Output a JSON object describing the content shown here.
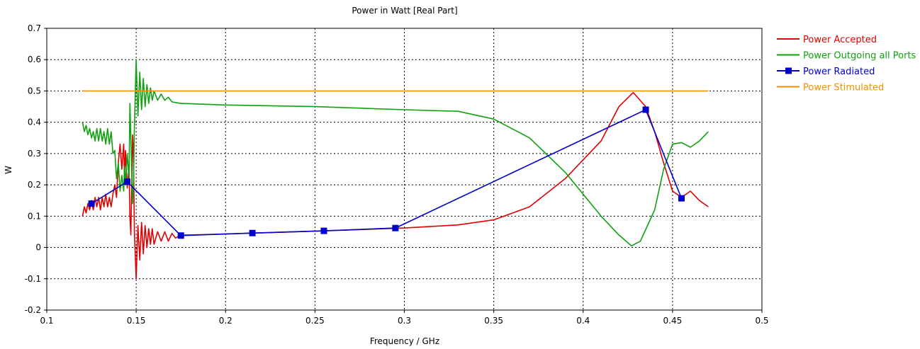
{
  "chart_data": {
    "type": "line",
    "title": "Power in Watt [Real Part]",
    "xlabel": "Frequency / GHz",
    "ylabel": "W",
    "xlim": [
      0.1,
      0.5
    ],
    "ylim": [
      -0.2,
      0.7
    ],
    "xticks": [
      "0.1",
      "0.15",
      "0.2",
      "0.25",
      "0.3",
      "0.35",
      "0.4",
      "0.45",
      "0.5"
    ],
    "yticks": [
      "-0.2",
      "-0.1",
      "0",
      "0.1",
      "0.2",
      "0.3",
      "0.4",
      "0.5",
      "0.6",
      "0.7"
    ],
    "grid": true,
    "legend_position": "right",
    "series": [
      {
        "name": "Power Accepted",
        "color": "#e00000",
        "marker": "none",
        "points": [
          [
            0.12,
            0.1
          ],
          [
            0.121,
            0.13
          ],
          [
            0.122,
            0.11
          ],
          [
            0.123,
            0.14
          ],
          [
            0.124,
            0.12
          ],
          [
            0.125,
            0.15
          ],
          [
            0.126,
            0.12
          ],
          [
            0.127,
            0.16
          ],
          [
            0.128,
            0.13
          ],
          [
            0.129,
            0.16
          ],
          [
            0.13,
            0.12
          ],
          [
            0.131,
            0.16
          ],
          [
            0.132,
            0.13
          ],
          [
            0.133,
            0.17
          ],
          [
            0.134,
            0.13
          ],
          [
            0.135,
            0.16
          ],
          [
            0.136,
            0.13
          ],
          [
            0.137,
            0.17
          ],
          [
            0.138,
            0.2
          ],
          [
            0.139,
            0.16
          ],
          [
            0.14,
            0.27
          ],
          [
            0.141,
            0.33
          ],
          [
            0.142,
            0.25
          ],
          [
            0.143,
            0.33
          ],
          [
            0.1435,
            0.22
          ],
          [
            0.144,
            0.31
          ],
          [
            0.145,
            0.19
          ],
          [
            0.146,
            0.26
          ],
          [
            0.1465,
            0.1
          ],
          [
            0.147,
            0.04
          ],
          [
            0.148,
            0.36
          ],
          [
            0.1485,
            0.3
          ],
          [
            0.149,
            0.05
          ],
          [
            0.15,
            -0.1
          ],
          [
            0.151,
            0.07
          ],
          [
            0.152,
            -0.04
          ],
          [
            0.153,
            0.08
          ],
          [
            0.154,
            -0.02
          ],
          [
            0.155,
            0.07
          ],
          [
            0.156,
            0.0
          ],
          [
            0.157,
            0.06
          ],
          [
            0.158,
            0.01
          ],
          [
            0.159,
            0.06
          ],
          [
            0.16,
            0.01
          ],
          [
            0.162,
            0.05
          ],
          [
            0.164,
            0.02
          ],
          [
            0.166,
            0.05
          ],
          [
            0.168,
            0.02
          ],
          [
            0.17,
            0.045
          ],
          [
            0.172,
            0.03
          ],
          [
            0.175,
            0.04
          ],
          [
            0.18,
            0.04
          ],
          [
            0.2,
            0.043
          ],
          [
            0.25,
            0.052
          ],
          [
            0.3,
            0.062
          ],
          [
            0.33,
            0.072
          ],
          [
            0.35,
            0.088
          ],
          [
            0.37,
            0.13
          ],
          [
            0.39,
            0.22
          ],
          [
            0.41,
            0.34
          ],
          [
            0.42,
            0.45
          ],
          [
            0.428,
            0.495
          ],
          [
            0.435,
            0.45
          ],
          [
            0.44,
            0.37
          ],
          [
            0.445,
            0.27
          ],
          [
            0.45,
            0.18
          ],
          [
            0.455,
            0.16
          ],
          [
            0.46,
            0.18
          ],
          [
            0.465,
            0.15
          ],
          [
            0.47,
            0.13
          ]
        ]
      },
      {
        "name": "Power Outgoing all Ports",
        "color": "#10a010",
        "marker": "none",
        "points": [
          [
            0.12,
            0.4
          ],
          [
            0.121,
            0.37
          ],
          [
            0.122,
            0.39
          ],
          [
            0.123,
            0.36
          ],
          [
            0.124,
            0.38
          ],
          [
            0.125,
            0.35
          ],
          [
            0.126,
            0.37
          ],
          [
            0.127,
            0.34
          ],
          [
            0.128,
            0.38
          ],
          [
            0.129,
            0.34
          ],
          [
            0.13,
            0.38
          ],
          [
            0.131,
            0.34
          ],
          [
            0.132,
            0.37
          ],
          [
            0.133,
            0.33
          ],
          [
            0.134,
            0.38
          ],
          [
            0.135,
            0.33
          ],
          [
            0.136,
            0.37
          ],
          [
            0.137,
            0.3
          ],
          [
            0.138,
            0.31
          ],
          [
            0.139,
            0.22
          ],
          [
            0.14,
            0.27
          ],
          [
            0.141,
            0.18
          ],
          [
            0.142,
            0.23
          ],
          [
            0.143,
            0.18
          ],
          [
            0.1435,
            0.26
          ],
          [
            0.144,
            0.2
          ],
          [
            0.145,
            0.3
          ],
          [
            0.146,
            0.22
          ],
          [
            0.1465,
            0.46
          ],
          [
            0.147,
            0.35
          ],
          [
            0.148,
            0.14
          ],
          [
            0.1485,
            0.2
          ],
          [
            0.149,
            0.38
          ],
          [
            0.15,
            0.6
          ],
          [
            0.151,
            0.42
          ],
          [
            0.152,
            0.56
          ],
          [
            0.153,
            0.44
          ],
          [
            0.154,
            0.54
          ],
          [
            0.155,
            0.45
          ],
          [
            0.156,
            0.52
          ],
          [
            0.157,
            0.46
          ],
          [
            0.158,
            0.51
          ],
          [
            0.159,
            0.47
          ],
          [
            0.16,
            0.5
          ],
          [
            0.162,
            0.47
          ],
          [
            0.164,
            0.49
          ],
          [
            0.166,
            0.47
          ],
          [
            0.168,
            0.48
          ],
          [
            0.17,
            0.465
          ],
          [
            0.175,
            0.46
          ],
          [
            0.2,
            0.455
          ],
          [
            0.25,
            0.45
          ],
          [
            0.3,
            0.44
          ],
          [
            0.33,
            0.435
          ],
          [
            0.35,
            0.41
          ],
          [
            0.37,
            0.35
          ],
          [
            0.39,
            0.24
          ],
          [
            0.41,
            0.1
          ],
          [
            0.42,
            0.04
          ],
          [
            0.427,
            0.005
          ],
          [
            0.432,
            0.02
          ],
          [
            0.44,
            0.12
          ],
          [
            0.445,
            0.25
          ],
          [
            0.45,
            0.33
          ],
          [
            0.455,
            0.335
          ],
          [
            0.46,
            0.32
          ],
          [
            0.465,
            0.34
          ],
          [
            0.47,
            0.37
          ]
        ]
      },
      {
        "name": "Power Radiated",
        "color": "#0000cc",
        "marker": "square",
        "points": [
          [
            0.125,
            0.14
          ],
          [
            0.145,
            0.21
          ],
          [
            0.175,
            0.038
          ],
          [
            0.215,
            0.046
          ],
          [
            0.255,
            0.053
          ],
          [
            0.295,
            0.062
          ],
          [
            0.435,
            0.44
          ],
          [
            0.455,
            0.157
          ]
        ]
      },
      {
        "name": "Power Stimulated",
        "color": "#f09000",
        "marker": "none",
        "points": [
          [
            0.12,
            0.5
          ],
          [
            0.47,
            0.5
          ]
        ]
      }
    ]
  }
}
